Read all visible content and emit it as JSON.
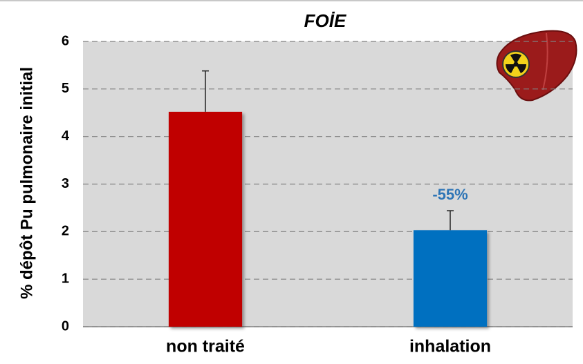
{
  "chart_data": {
    "type": "bar",
    "title": "FOİE",
    "y_label": "% dépôt Pu pulmonaire initial",
    "categories": [
      "non traité",
      "inhalation"
    ],
    "values": [
      4.52,
      2.03
    ],
    "errors": [
      0.86,
      0.41
    ],
    "colors": [
      "#c00000",
      "#0070c0"
    ],
    "ylim": [
      0,
      6
    ],
    "yticks": [
      0,
      1,
      2,
      3,
      4,
      5,
      6
    ],
    "grid": true,
    "annotations": [
      {
        "text": "-55%",
        "category": 1,
        "color": "#2e75b6"
      }
    ]
  }
}
